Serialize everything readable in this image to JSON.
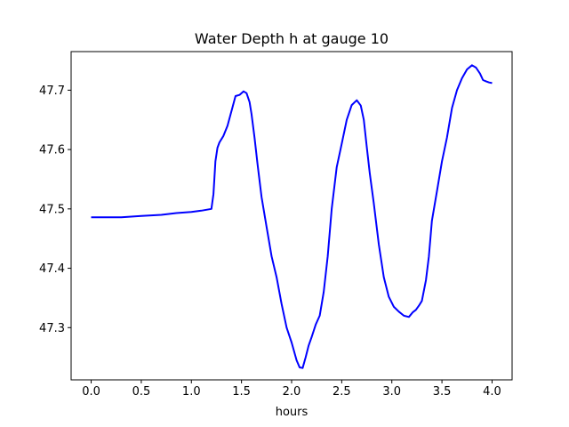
{
  "chart_data": {
    "type": "line",
    "title": "Water Depth h at gauge 10",
    "xlabel": "hours",
    "ylabel": "",
    "xlim": [
      -0.2,
      4.2
    ],
    "ylim": [
      47.212,
      47.765
    ],
    "xticks": [
      0.0,
      0.5,
      1.0,
      1.5,
      2.0,
      2.5,
      3.0,
      3.5,
      4.0
    ],
    "xtick_labels": [
      "0.0",
      "0.5",
      "1.0",
      "1.5",
      "2.0",
      "2.5",
      "3.0",
      "3.5",
      "4.0"
    ],
    "yticks": [
      47.3,
      47.4,
      47.5,
      47.6,
      47.7
    ],
    "ytick_labels": [
      "47.3",
      "47.4",
      "47.5",
      "47.6",
      "47.7"
    ],
    "grid": false,
    "series": [
      {
        "color": "#0000ff",
        "x": [
          0.0,
          0.3,
          0.5,
          0.7,
          0.85,
          1.0,
          1.1,
          1.2,
          1.22,
          1.24,
          1.26,
          1.28,
          1.32,
          1.36,
          1.4,
          1.44,
          1.48,
          1.52,
          1.55,
          1.58,
          1.6,
          1.63,
          1.66,
          1.7,
          1.75,
          1.8,
          1.85,
          1.9,
          1.95,
          2.0,
          2.05,
          2.08,
          2.11,
          2.14,
          2.17,
          2.2,
          2.24,
          2.28,
          2.32,
          2.36,
          2.4,
          2.45,
          2.5,
          2.55,
          2.6,
          2.65,
          2.69,
          2.72,
          2.75,
          2.78,
          2.82,
          2.87,
          2.92,
          2.97,
          3.02,
          3.07,
          3.12,
          3.17,
          3.21,
          3.24,
          3.27,
          3.3,
          3.34,
          3.37,
          3.4,
          3.45,
          3.5,
          3.55,
          3.6,
          3.65,
          3.7,
          3.75,
          3.8,
          3.84,
          3.88,
          3.91,
          3.94,
          3.97,
          4.0
        ],
        "y": [
          47.486,
          47.486,
          47.488,
          47.49,
          47.493,
          47.495,
          47.497,
          47.5,
          47.525,
          47.58,
          47.603,
          47.612,
          47.623,
          47.64,
          47.665,
          47.69,
          47.692,
          47.698,
          47.695,
          47.68,
          47.66,
          47.62,
          47.575,
          47.52,
          47.47,
          47.42,
          47.385,
          47.34,
          47.3,
          47.275,
          47.245,
          47.233,
          47.232,
          47.25,
          47.27,
          47.284,
          47.305,
          47.32,
          47.36,
          47.42,
          47.5,
          47.57,
          47.61,
          47.65,
          47.675,
          47.683,
          47.674,
          47.65,
          47.605,
          47.56,
          47.51,
          47.44,
          47.385,
          47.352,
          47.335,
          47.327,
          47.32,
          47.318,
          47.326,
          47.33,
          47.337,
          47.345,
          47.38,
          47.42,
          47.48,
          47.53,
          47.58,
          47.62,
          47.67,
          47.7,
          47.72,
          47.735,
          47.742,
          47.738,
          47.728,
          47.717,
          47.715,
          47.713,
          47.712
        ]
      }
    ]
  }
}
